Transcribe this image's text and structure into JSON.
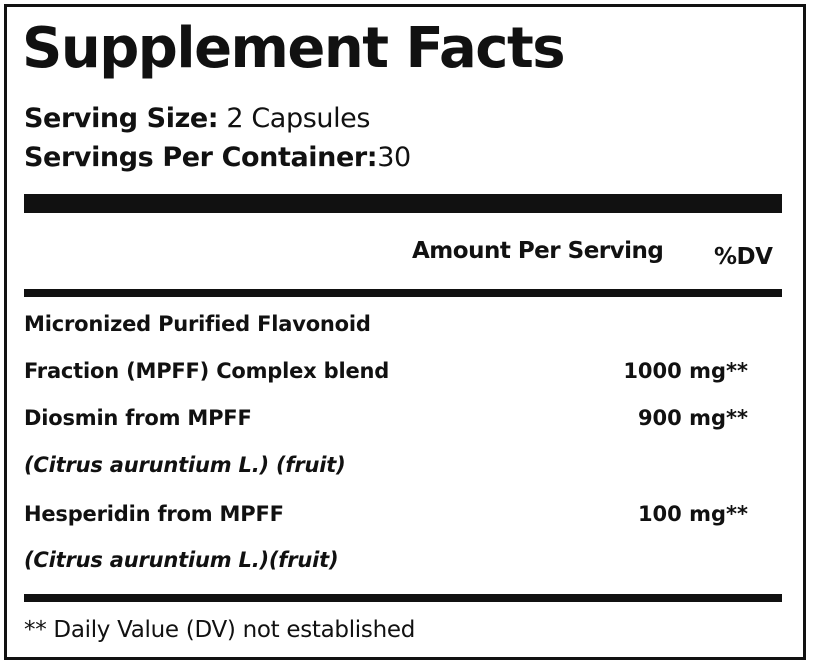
{
  "title": "Supplement Facts",
  "serving": {
    "size_label": "Serving Size:",
    "size_value": "2 Capsules",
    "per_container_label": "Servings Per Container:",
    "per_container_value": "30"
  },
  "header": {
    "amount": "Amount Per Serving",
    "dv": "%DV"
  },
  "rows": [
    {
      "name": "Micronized Purified Flavonoid",
      "amount": "",
      "dv": ""
    },
    {
      "name": "Fraction (MPFF) Complex blend",
      "amount": "1000 mg",
      "dv": "**"
    },
    {
      "name": "Diosmin from MPFF",
      "amount": "900 mg",
      "dv": "**"
    },
    {
      "name": "(Citrus auruntium L.) (fruit)",
      "amount": "",
      "dv": ""
    },
    {
      "name": "Hesperidin from MPFF",
      "amount": "100 mg",
      "dv": "**"
    },
    {
      "name": "(Citrus auruntium L.)(fruit)",
      "amount": "",
      "dv": ""
    }
  ],
  "footnote": "** Daily Value (DV) not established"
}
